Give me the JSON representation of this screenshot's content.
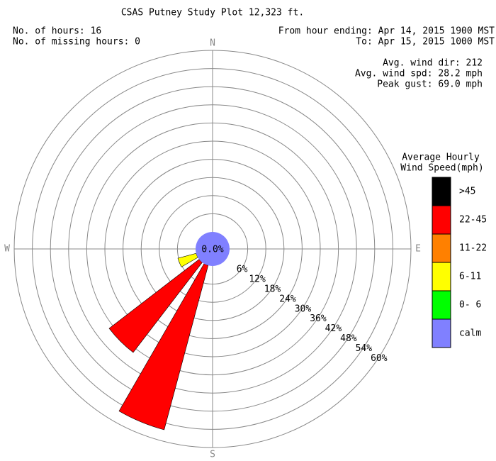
{
  "chart_data": {
    "type": "windrose",
    "title": "CSAS Putney Study Plot 12,323 ft.",
    "info_left": [
      "No. of hours: 16",
      "No. of missing hours: 0"
    ],
    "info_right": [
      "From hour ending: Apr 14, 2015 1900 MST",
      "To: Apr 15, 2015 1000 MST"
    ],
    "stats": [
      "Avg. wind dir: 212",
      "Avg. wind spd: 28.2 mph",
      "Peak gust: 69.0 mph"
    ],
    "legend_title": [
      "Average Hourly",
      "Wind Speed(mph)"
    ],
    "categories": [
      "N",
      null,
      null,
      null,
      "E",
      null,
      null,
      null,
      "S",
      null,
      null,
      null,
      "W",
      null,
      null,
      null
    ],
    "series": [
      {
        "name": ">45",
        "color": "#000000",
        "values": [
          0,
          0,
          0,
          0,
          0,
          0,
          0,
          0,
          0,
          0,
          0,
          0,
          0,
          0,
          0,
          0
        ]
      },
      {
        "name": "22-45",
        "color": "#ff0000",
        "values": [
          0,
          0,
          0,
          0,
          0,
          0,
          0,
          0,
          0,
          56.25,
          37.5,
          0,
          0,
          0,
          0,
          0
        ]
      },
      {
        "name": "11-22",
        "color": "#ff8000",
        "values": [
          0,
          0,
          0,
          0,
          0,
          0,
          0,
          0,
          0,
          0,
          0,
          0,
          0,
          0,
          0,
          0
        ]
      },
      {
        "name": "6-11",
        "color": "#ffff00",
        "values": [
          0,
          0,
          0,
          0,
          0,
          0,
          0,
          0,
          0,
          0,
          0,
          6.25,
          0,
          0,
          0,
          0
        ]
      },
      {
        "name": "0- 6",
        "color": "#00ff00",
        "values": [
          0,
          0,
          0,
          0,
          0,
          0,
          0,
          0,
          0,
          0,
          0,
          0,
          0,
          0,
          0,
          0
        ]
      }
    ],
    "calm": {
      "name": "calm",
      "color": "#8080ff",
      "value": 0,
      "value_label": "0.0%"
    },
    "rlim": [
      0,
      60
    ],
    "rticks": [
      {
        "value": 6,
        "label": "6%"
      },
      {
        "value": 12,
        "label": "12%"
      },
      {
        "value": 18,
        "label": "18%"
      },
      {
        "value": 24,
        "label": "24%"
      },
      {
        "value": 30,
        "label": "30%"
      },
      {
        "value": 36,
        "label": "36%"
      },
      {
        "value": 42,
        "label": "42%"
      },
      {
        "value": 48,
        "label": "48%"
      },
      {
        "value": 54,
        "label": "54%"
      },
      {
        "value": 60,
        "label": "60%"
      }
    ]
  }
}
